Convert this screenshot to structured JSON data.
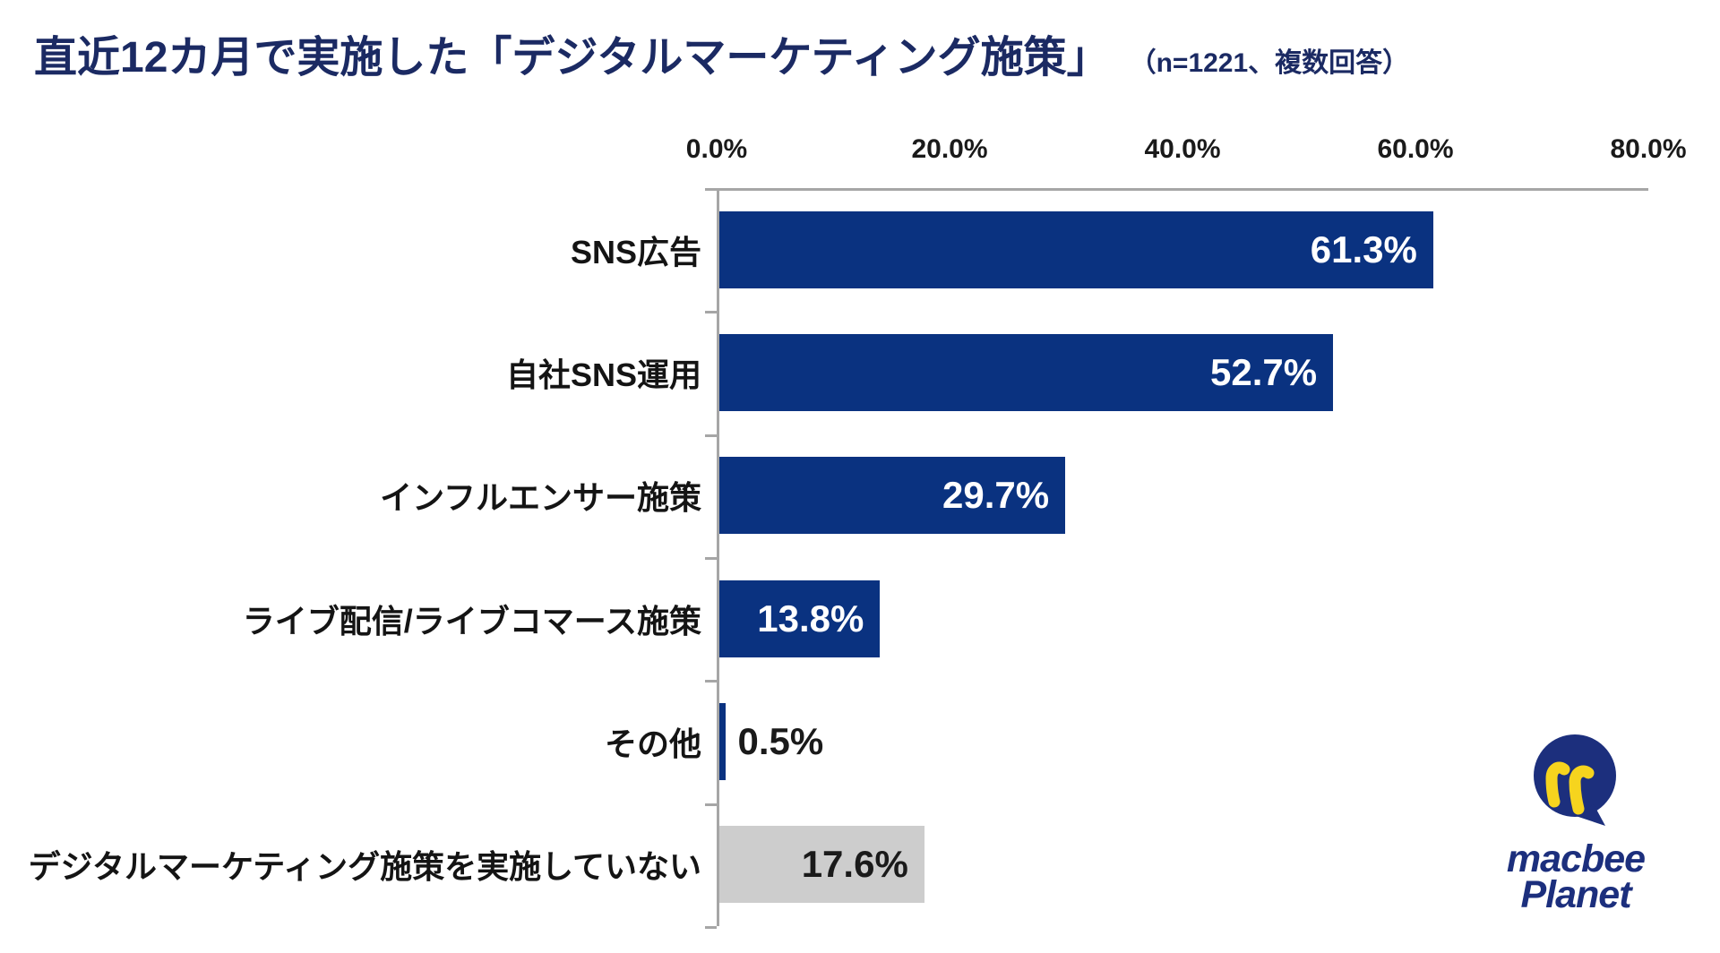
{
  "chart_data": {
    "type": "bar",
    "orientation": "horizontal",
    "title": "直近12カ月で実施した「デジタルマーケティング施策」",
    "subtitle": "（n=1221、複数回答）",
    "xlabel": "",
    "ylabel": "",
    "xlim": [
      0,
      80
    ],
    "grid": false,
    "legend": "none",
    "xticks": [
      {
        "value": 0,
        "label": "0.0%"
      },
      {
        "value": 20,
        "label": "20.0%"
      },
      {
        "value": 40,
        "label": "40.0%"
      },
      {
        "value": 60,
        "label": "60.0%"
      },
      {
        "value": 80,
        "label": "80.0%"
      }
    ],
    "categories": [
      "SNS広告",
      "自社SNS運用",
      "インフルエンサー施策",
      "ライブ配信/ライブコマース施策",
      "その他",
      "デジタルマーケティング施策を実施していない"
    ],
    "values": [
      61.3,
      52.7,
      29.7,
      13.8,
      0.5,
      17.6
    ],
    "bars": [
      {
        "category": "SNS広告",
        "value": 61.3,
        "label": "61.3%",
        "color": "#0A3280",
        "label_position": "inside",
        "label_color": "#FFFFFF"
      },
      {
        "category": "自社SNS運用",
        "value": 52.7,
        "label": "52.7%",
        "color": "#0A3280",
        "label_position": "inside",
        "label_color": "#FFFFFF"
      },
      {
        "category": "インフルエンサー施策",
        "value": 29.7,
        "label": "29.7%",
        "color": "#0A3280",
        "label_position": "inside",
        "label_color": "#FFFFFF"
      },
      {
        "category": "ライブ配信/ライブコマース施策",
        "value": 13.8,
        "label": "13.8%",
        "color": "#0A3280",
        "label_position": "inside",
        "label_color": "#FFFFFF"
      },
      {
        "category": "その他",
        "value": 0.5,
        "label": "0.5%",
        "color": "#0A3280",
        "label_position": "outside",
        "label_color": "#1A1A1A"
      },
      {
        "category": "デジタルマーケティング施策を実施していない",
        "value": 17.6,
        "label": "17.6%",
        "color": "#CDCDCD",
        "label_position": "inside",
        "label_color": "#1A1A1A"
      }
    ]
  },
  "colors": {
    "title": "#1B2A63",
    "bar_navy": "#0A3280",
    "bar_gray": "#CDCDCD",
    "axis_line": "#A6A6A6",
    "tick_label": "#1A1A1A",
    "category_label": "#141414",
    "logo_navy": "#1C2F7D",
    "logo_yellow": "#F6D41E"
  },
  "logo": {
    "line1": "macbee",
    "line2": "Planet"
  }
}
